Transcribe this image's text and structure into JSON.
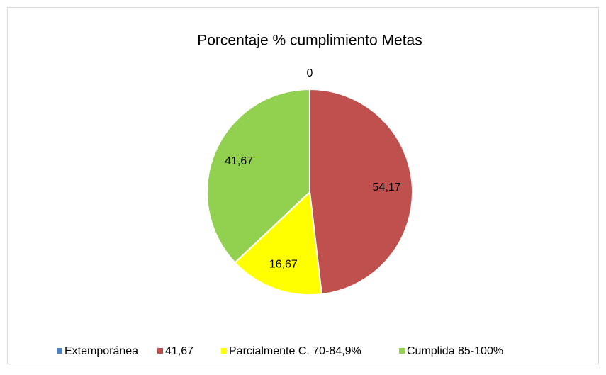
{
  "chart_data": {
    "type": "pie",
    "title": "Porcentaje % cumplimiento Metas",
    "categories": [
      "Extemporánea",
      "41,67",
      "Parcialmente C. 70-84,9%",
      "Cumplida 85-100%"
    ],
    "values": [
      0,
      54.17,
      16.67,
      41.67
    ],
    "value_labels": [
      "0",
      "54,17",
      "16,67",
      "41,67"
    ],
    "colors": [
      "#4f81bd",
      "#c0504d",
      "#ffff00",
      "#92d050"
    ],
    "legend": "bottom"
  }
}
